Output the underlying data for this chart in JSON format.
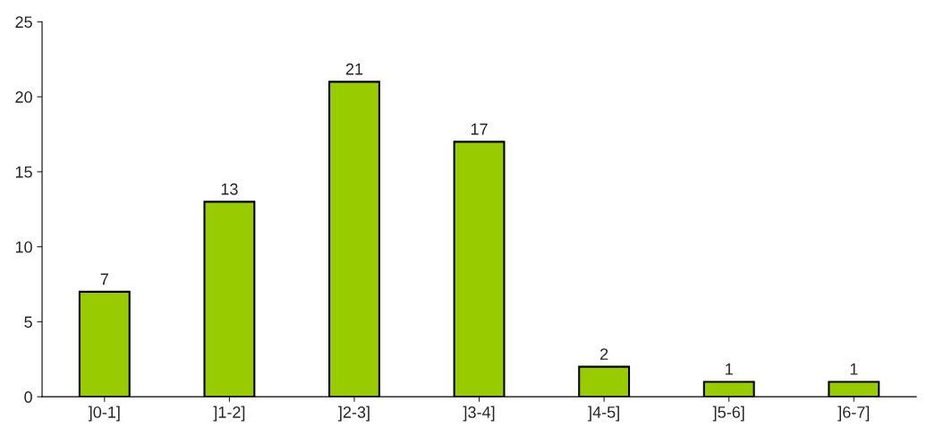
{
  "chart_data": {
    "type": "bar",
    "categories": [
      "]0-1]",
      "]1-2]",
      "]2-3]",
      "]3-4]",
      "]4-5]",
      "]5-6]",
      "]6-7]"
    ],
    "values": [
      7,
      13,
      21,
      17,
      2,
      1,
      1
    ],
    "color": "#99cc00",
    "ylim": [
      0,
      25
    ],
    "yticks": [
      0,
      5,
      10,
      15,
      20,
      25
    ],
    "data_labels": true,
    "grid": false
  }
}
